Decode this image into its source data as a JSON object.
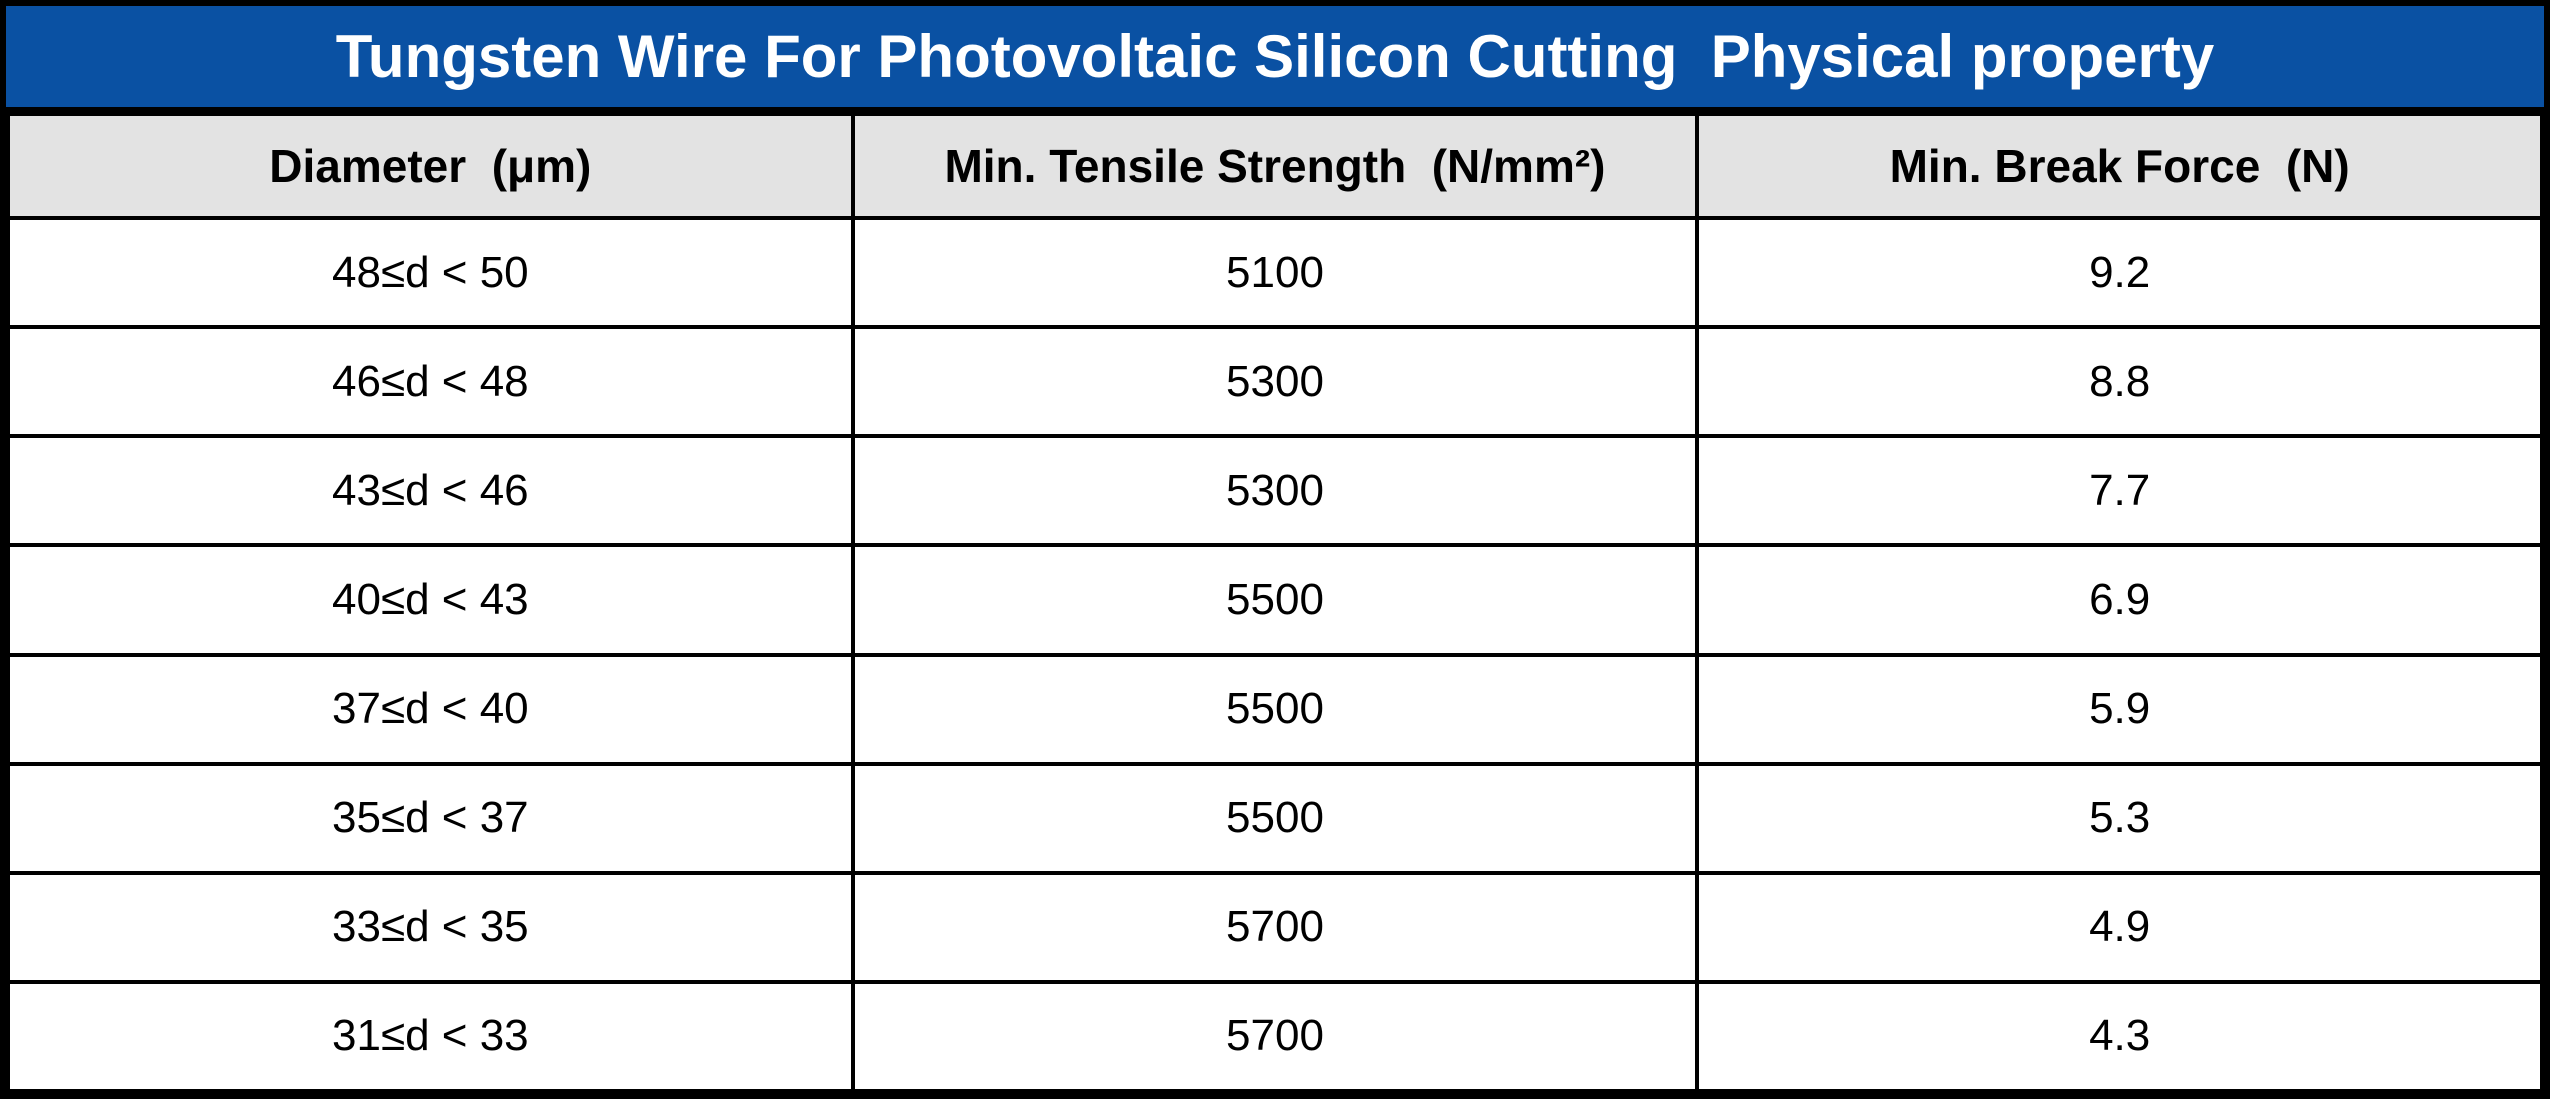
{
  "title": {
    "text": "Tungsten Wire For Photovoltaic Silicon Cutting  Physical property"
  },
  "colors": {
    "title_bg": "#0a51a3",
    "title_fg": "#ffffff",
    "header_bg": "#e3e3e3",
    "border": "#000000",
    "text": "#000000"
  },
  "table": {
    "headers": [
      "Diameter  (μm)",
      "Min. Tensile Strength  (N/mm²)",
      "Min. Break Force  (N)"
    ],
    "rows": [
      [
        "48≤d < 50",
        "5100",
        "9.2"
      ],
      [
        "46≤d < 48",
        "5300",
        "8.8"
      ],
      [
        "43≤d < 46",
        "5300",
        "7.7"
      ],
      [
        "40≤d < 43",
        "5500",
        "6.9"
      ],
      [
        "37≤d < 40",
        "5500",
        "5.9"
      ],
      [
        "35≤d < 37",
        "5500",
        "5.3"
      ],
      [
        "33≤d < 35",
        "5700",
        "4.9"
      ],
      [
        "31≤d < 33",
        "5700",
        "4.3"
      ]
    ]
  },
  "chart_data": {
    "type": "table",
    "title": "Tungsten Wire For Photovoltaic Silicon Cutting Physical property",
    "columns": [
      "Diameter (μm)",
      "Min. Tensile Strength (N/mm²)",
      "Min. Break Force (N)"
    ],
    "rows": [
      {
        "diameter_range": "48≤d<50",
        "min_tensile_strength_n_mm2": 5100,
        "min_break_force_n": 9.2
      },
      {
        "diameter_range": "46≤d<48",
        "min_tensile_strength_n_mm2": 5300,
        "min_break_force_n": 8.8
      },
      {
        "diameter_range": "43≤d<46",
        "min_tensile_strength_n_mm2": 5300,
        "min_break_force_n": 7.7
      },
      {
        "diameter_range": "40≤d<43",
        "min_tensile_strength_n_mm2": 5500,
        "min_break_force_n": 6.9
      },
      {
        "diameter_range": "37≤d<40",
        "min_tensile_strength_n_mm2": 5500,
        "min_break_force_n": 5.9
      },
      {
        "diameter_range": "35≤d<37",
        "min_tensile_strength_n_mm2": 5500,
        "min_break_force_n": 5.3
      },
      {
        "diameter_range": "33≤d<35",
        "min_tensile_strength_n_mm2": 5700,
        "min_break_force_n": 4.9
      },
      {
        "diameter_range": "31≤d<33",
        "min_tensile_strength_n_mm2": 5700,
        "min_break_force_n": 4.3
      }
    ]
  }
}
